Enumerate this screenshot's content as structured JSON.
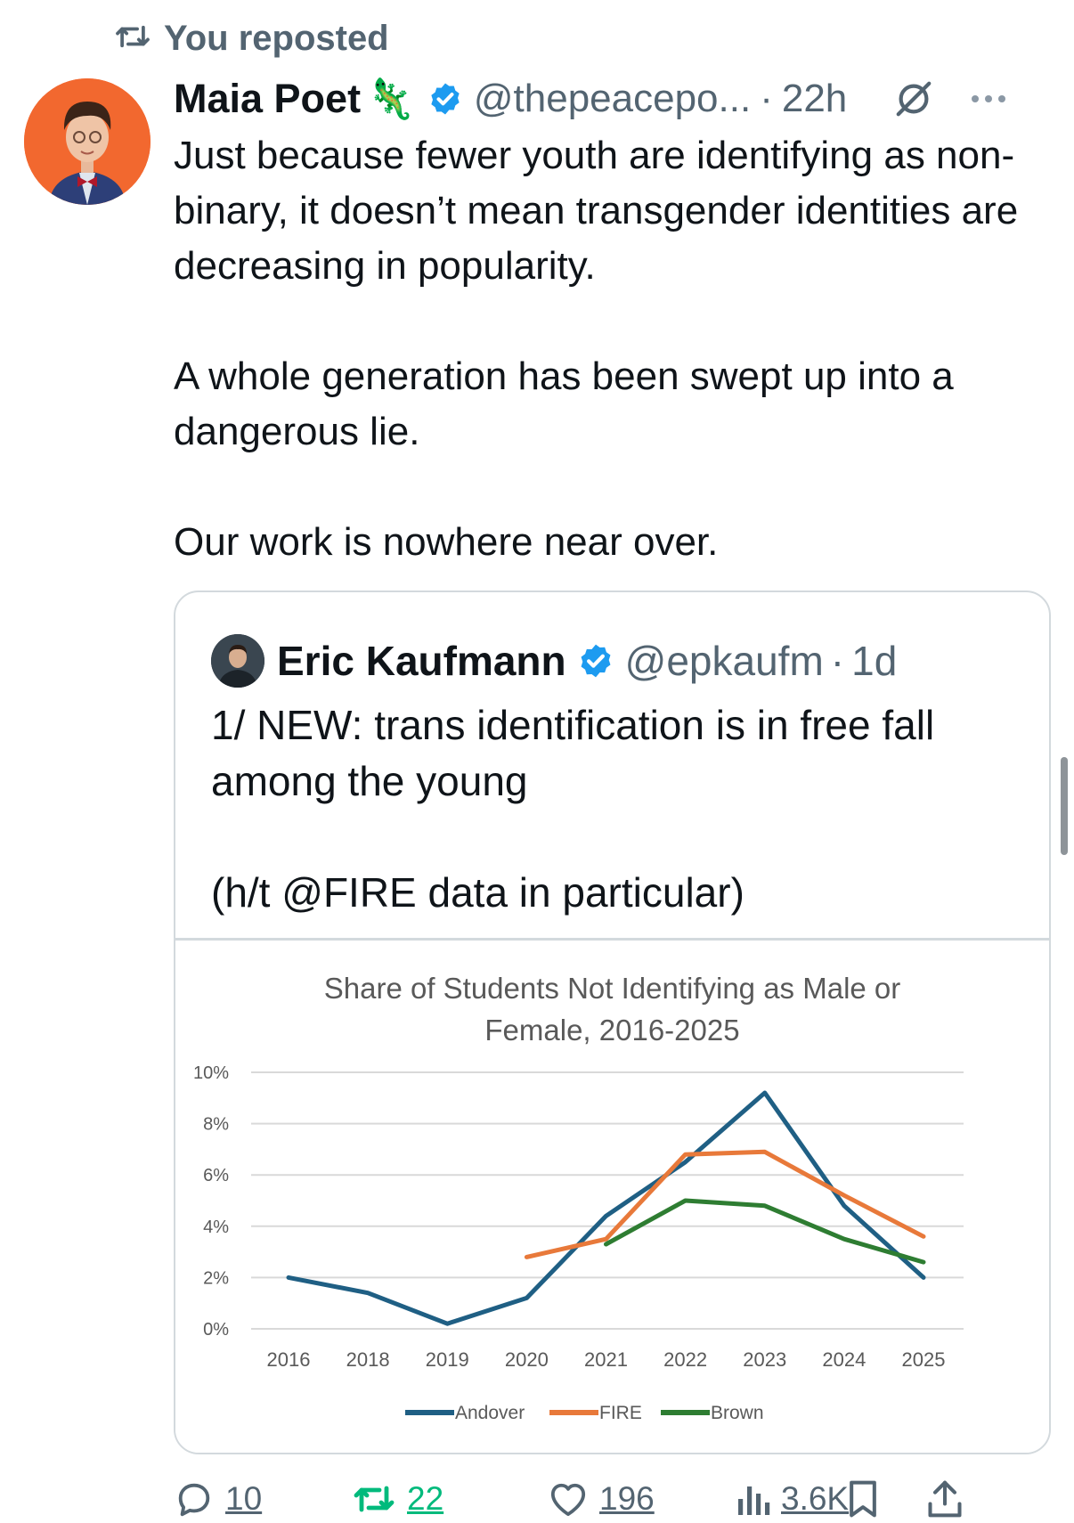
{
  "repost": {
    "label": "You reposted"
  },
  "tweet": {
    "author_name": "Maia Poet",
    "author_emoji": "🦎",
    "handle": "@thepeacepo...",
    "separator": "·",
    "time": "22h",
    "paragraphs": [
      "Just because fewer youth are identifying as non-binary, it doesn’t mean transgender identities are decreasing in popularity.",
      "A whole generation has been swept up into a dangerous lie.",
      "Our work is nowhere near over."
    ]
  },
  "quote": {
    "author_name": "Eric Kaufmann",
    "handle": "@epkaufm",
    "separator": "·",
    "time": "1d",
    "paragraphs": [
      "1/ NEW: trans identification is in free fall among the young",
      "(h/t @FIRE data in particular)"
    ]
  },
  "chart_data": {
    "type": "line",
    "title_lines": [
      "Share of Students Not Identifying as Male or",
      "Female, 2016-2025"
    ],
    "x": [
      "2016",
      "2018",
      "2019",
      "2020",
      "2021",
      "2022",
      "2023",
      "2024",
      "2025"
    ],
    "y_ticks": [
      "10%",
      "8%",
      "6%",
      "4%",
      "2%",
      "0%"
    ],
    "ylim": [
      0,
      10
    ],
    "grid": true,
    "legend_position": "bottom",
    "series": [
      {
        "name": "Andover",
        "color": "#1f5f84",
        "values": [
          2.0,
          1.4,
          0.2,
          1.2,
          4.4,
          6.5,
          9.2,
          4.8,
          2.0
        ]
      },
      {
        "name": "FIRE",
        "color": "#e8793a",
        "values": [
          null,
          null,
          null,
          2.8,
          3.5,
          6.8,
          6.9,
          5.2,
          3.6
        ]
      },
      {
        "name": "Brown",
        "color": "#2e7d32",
        "values": [
          null,
          null,
          null,
          null,
          3.3,
          5.0,
          4.8,
          3.5,
          2.6
        ]
      }
    ]
  },
  "actions": {
    "replies": "10",
    "reposts": "22",
    "likes": "196",
    "views": "3.6K"
  },
  "colors": {
    "verified": "#1d9bf0",
    "repost_active": "#00ba7c",
    "muted": "#536471"
  },
  "icons": [
    "repost-icon",
    "verified-badge-icon",
    "grok-icon",
    "more-icon",
    "reply-icon",
    "like-icon",
    "views-icon",
    "bookmark-icon",
    "share-icon"
  ]
}
